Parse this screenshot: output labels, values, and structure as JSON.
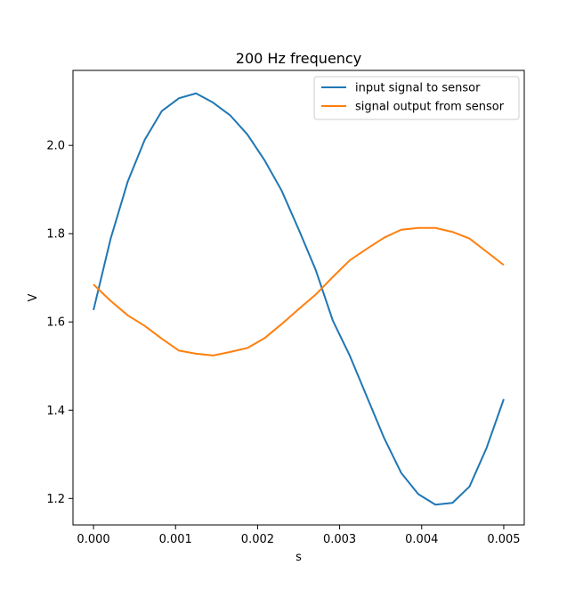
{
  "chart_data": {
    "type": "line",
    "title": "200 Hz frequency",
    "xlabel": "s",
    "ylabel": "V",
    "xlim": [
      -0.00025,
      0.00525
    ],
    "ylim": [
      1.14,
      2.17
    ],
    "xticks": [
      0.0,
      0.001,
      0.002,
      0.003,
      0.004,
      0.005
    ],
    "xtick_labels": [
      "0.000",
      "0.001",
      "0.002",
      "0.003",
      "0.004",
      "0.005"
    ],
    "yticks": [
      1.2,
      1.4,
      1.6,
      1.8,
      2.0
    ],
    "ytick_labels": [
      "1.2",
      "1.4",
      "1.6",
      "1.8",
      "2.0"
    ],
    "grid": false,
    "legend_position": "top-right",
    "series": [
      {
        "name": "input signal to sensor",
        "color": "#1f77b4",
        "x": [
          0.0,
          0.000208,
          0.000417,
          0.000625,
          0.000833,
          0.001042,
          0.00125,
          0.001458,
          0.001667,
          0.001875,
          0.002083,
          0.002292,
          0.0025,
          0.002708,
          0.002917,
          0.003125,
          0.003333,
          0.003542,
          0.00375,
          0.003958,
          0.004167,
          0.004375,
          0.004583,
          0.004792,
          0.005
        ],
        "y": [
          1.627,
          1.788,
          1.918,
          2.013,
          2.078,
          2.107,
          2.118,
          2.097,
          2.068,
          2.025,
          1.967,
          1.898,
          1.81,
          1.718,
          1.603,
          1.523,
          1.43,
          1.337,
          1.258,
          1.21,
          1.186,
          1.19,
          1.227,
          1.315,
          1.425
        ]
      },
      {
        "name": "signal output from sensor",
        "color": "#ff7f0e",
        "x": [
          0.0,
          0.000208,
          0.000417,
          0.000625,
          0.000833,
          0.001042,
          0.00125,
          0.001458,
          0.001667,
          0.001875,
          0.002083,
          0.002292,
          0.0025,
          0.002708,
          0.002917,
          0.003125,
          0.003333,
          0.003542,
          0.00375,
          0.003958,
          0.004167,
          0.004375,
          0.004583,
          0.004792,
          0.005
        ],
        "y": [
          1.685,
          1.648,
          1.615,
          1.591,
          1.562,
          1.535,
          1.528,
          1.524,
          1.532,
          1.541,
          1.563,
          1.595,
          1.629,
          1.662,
          1.702,
          1.74,
          1.766,
          1.791,
          1.809,
          1.813,
          1.813,
          1.804,
          1.789,
          1.759,
          1.729
        ]
      }
    ]
  }
}
